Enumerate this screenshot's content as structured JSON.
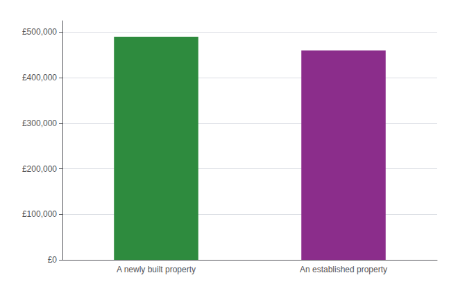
{
  "chart_data": {
    "type": "bar",
    "categories": [
      "A newly built property",
      "An established property"
    ],
    "values": [
      490000,
      460000
    ],
    "colors": [
      "#2e8b3e",
      "#8b2d8b"
    ],
    "ylim": [
      0,
      525000
    ],
    "yticks": [
      {
        "value": 0,
        "label": "£0"
      },
      {
        "value": 100000,
        "label": "£100,000"
      },
      {
        "value": 200000,
        "label": "£200,000"
      },
      {
        "value": 300000,
        "label": "£300,000"
      },
      {
        "value": 400000,
        "label": "£400,000"
      },
      {
        "value": 500000,
        "label": "£500,000"
      }
    ],
    "grid": true
  }
}
